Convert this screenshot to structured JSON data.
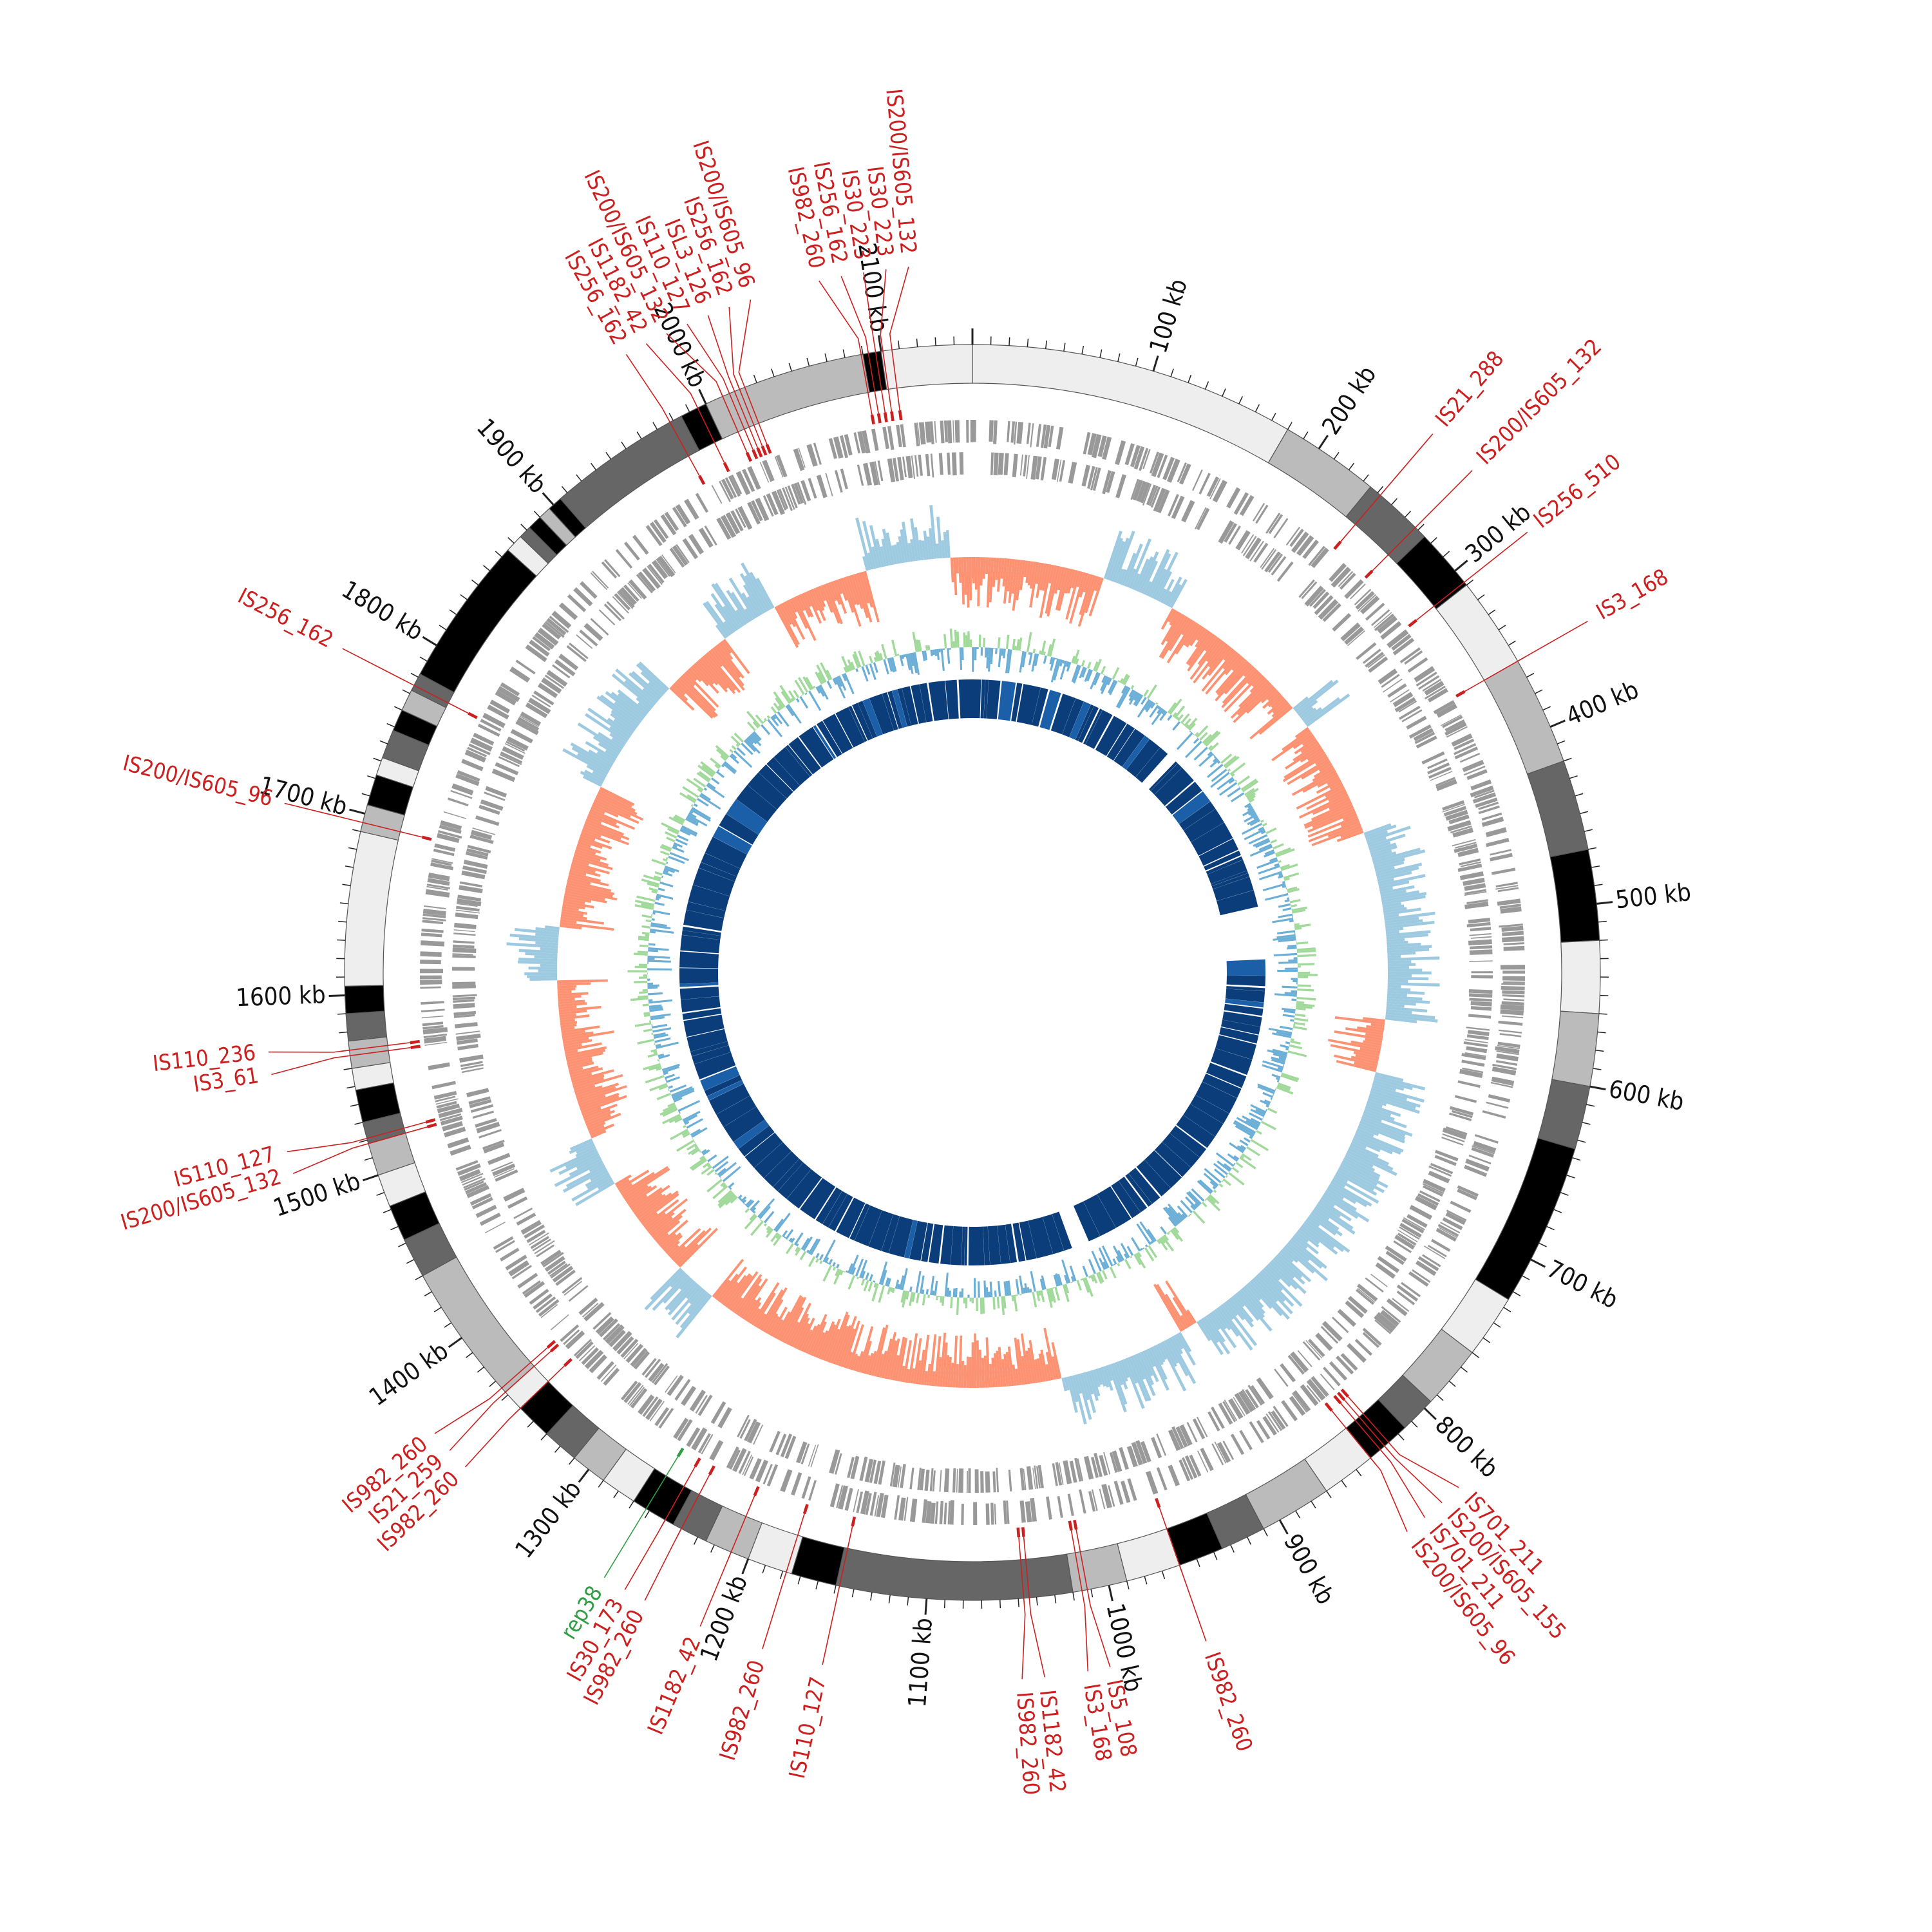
{
  "genome_map": {
    "genome_size_kb": 2150,
    "colors": {
      "is_element": "#cc1f1f",
      "rep_element": "#2f9e44",
      "gc_skew_positive": "#9ecae1",
      "gc_skew_negative": "#fc9272",
      "gc_content_fill": "#a1d99b",
      "gc_content_line": "#6baed6",
      "blast_ring": "#0a3d7a",
      "gene_ring": "#999999"
    },
    "scale_ticks": [
      {
        "kb": 100,
        "label": "100 kb"
      },
      {
        "kb": 200,
        "label": "200 kb"
      },
      {
        "kb": 300,
        "label": "300 kb"
      },
      {
        "kb": 400,
        "label": "400 kb"
      },
      {
        "kb": 500,
        "label": "500 kb"
      },
      {
        "kb": 600,
        "label": "600 kb"
      },
      {
        "kb": 700,
        "label": "700 kb"
      },
      {
        "kb": 800,
        "label": "800 kb"
      },
      {
        "kb": 900,
        "label": "900 kb"
      },
      {
        "kb": 1000,
        "label": "1000 kb"
      },
      {
        "kb": 1100,
        "label": "1100 kb"
      },
      {
        "kb": 1200,
        "label": "1200 kb"
      },
      {
        "kb": 1300,
        "label": "1300 kb"
      },
      {
        "kb": 1400,
        "label": "1400 kb"
      },
      {
        "kb": 1500,
        "label": "1500 kb"
      },
      {
        "kb": 1600,
        "label": "1600 kb"
      },
      {
        "kb": 1700,
        "label": "1700 kb"
      },
      {
        "kb": 1800,
        "label": "1800 kb"
      },
      {
        "kb": 1900,
        "label": "1900 kb"
      },
      {
        "kb": 2000,
        "label": "2000 kb"
      },
      {
        "kb": 2100,
        "label": "2100 kb"
      }
    ],
    "contigs": [
      {
        "start": 0,
        "end": 180,
        "shade": "#eeeeee"
      },
      {
        "start": 180,
        "end": 235,
        "shade": "#bbbbbb"
      },
      {
        "start": 235,
        "end": 275,
        "shade": "#666666"
      },
      {
        "start": 275,
        "end": 310,
        "shade": "#000000"
      },
      {
        "start": 310,
        "end": 360,
        "shade": "#eeeeee"
      },
      {
        "start": 360,
        "end": 420,
        "shade": "#bbbbbb"
      },
      {
        "start": 420,
        "end": 470,
        "shade": "#666666"
      },
      {
        "start": 470,
        "end": 520,
        "shade": "#000000"
      },
      {
        "start": 520,
        "end": 560,
        "shade": "#eeeeee"
      },
      {
        "start": 560,
        "end": 600,
        "shade": "#bbbbbb"
      },
      {
        "start": 600,
        "end": 635,
        "shade": "#666666"
      },
      {
        "start": 635,
        "end": 725,
        "shade": "#000000"
      },
      {
        "start": 725,
        "end": 760,
        "shade": "#eeeeee"
      },
      {
        "start": 760,
        "end": 795,
        "shade": "#bbbbbb"
      },
      {
        "start": 795,
        "end": 815,
        "shade": "#666666"
      },
      {
        "start": 815,
        "end": 840,
        "shade": "#000000"
      },
      {
        "start": 840,
        "end": 870,
        "shade": "#eeeeee"
      },
      {
        "start": 870,
        "end": 910,
        "shade": "#bbbbbb"
      },
      {
        "start": 910,
        "end": 935,
        "shade": "#666666"
      },
      {
        "start": 935,
        "end": 960,
        "shade": "#000000"
      },
      {
        "start": 960,
        "end": 990,
        "shade": "#eeeeee"
      },
      {
        "start": 990,
        "end": 1020,
        "shade": "#bbbbbb"
      },
      {
        "start": 1020,
        "end": 1150,
        "shade": "#666666"
      },
      {
        "start": 1150,
        "end": 1175,
        "shade": "#000000"
      },
      {
        "start": 1175,
        "end": 1200,
        "shade": "#eeeeee"
      },
      {
        "start": 1200,
        "end": 1225,
        "shade": "#bbbbbb"
      },
      {
        "start": 1225,
        "end": 1245,
        "shade": "#666666"
      },
      {
        "start": 1245,
        "end": 1270,
        "shade": "#000000"
      },
      {
        "start": 1270,
        "end": 1290,
        "shade": "#eeeeee"
      },
      {
        "start": 1290,
        "end": 1310,
        "shade": "#bbbbbb"
      },
      {
        "start": 1310,
        "end": 1330,
        "shade": "#666666"
      },
      {
        "start": 1330,
        "end": 1350,
        "shade": "#000000"
      },
      {
        "start": 1350,
        "end": 1362,
        "shade": "#eeeeee"
      },
      {
        "start": 1362,
        "end": 1440,
        "shade": "#bbbbbb"
      },
      {
        "start": 1440,
        "end": 1462,
        "shade": "#666666"
      },
      {
        "start": 1462,
        "end": 1482,
        "shade": "#000000"
      },
      {
        "start": 1482,
        "end": 1500,
        "shade": "#eeeeee"
      },
      {
        "start": 1500,
        "end": 1518,
        "shade": "#bbbbbb"
      },
      {
        "start": 1518,
        "end": 1530,
        "shade": "#666666"
      },
      {
        "start": 1530,
        "end": 1548,
        "shade": "#000000"
      },
      {
        "start": 1548,
        "end": 1560,
        "shade": "#eeeeee"
      },
      {
        "start": 1560,
        "end": 1575,
        "shade": "#bbbbbb"
      },
      {
        "start": 1575,
        "end": 1590,
        "shade": "#666666"
      },
      {
        "start": 1590,
        "end": 1605,
        "shade": "#000000"
      },
      {
        "start": 1605,
        "end": 1690,
        "shade": "#eeeeee"
      },
      {
        "start": 1690,
        "end": 1705,
        "shade": "#bbbbbb"
      },
      {
        "start": 1705,
        "end": 1722,
        "shade": "#000000"
      },
      {
        "start": 1722,
        "end": 1732,
        "shade": "#eeeeee"
      },
      {
        "start": 1732,
        "end": 1748,
        "shade": "#666666"
      },
      {
        "start": 1748,
        "end": 1760,
        "shade": "#000000"
      },
      {
        "start": 1760,
        "end": 1772,
        "shade": "#bbbbbb"
      },
      {
        "start": 1772,
        "end": 1782,
        "shade": "#666666"
      },
      {
        "start": 1782,
        "end": 1865,
        "shade": "#000000"
      },
      {
        "start": 1865,
        "end": 1875,
        "shade": "#eeeeee"
      },
      {
        "start": 1875,
        "end": 1882,
        "shade": "#666666"
      },
      {
        "start": 1882,
        "end": 1890,
        "shade": "#000000"
      },
      {
        "start": 1890,
        "end": 1897,
        "shade": "#bbbbbb"
      },
      {
        "start": 1897,
        "end": 1905,
        "shade": "#000000"
      },
      {
        "start": 1905,
        "end": 1985,
        "shade": "#666666"
      },
      {
        "start": 1985,
        "end": 2000,
        "shade": "#000000"
      },
      {
        "start": 2000,
        "end": 2010,
        "shade": "#bbbbbb"
      },
      {
        "start": 2010,
        "end": 2090,
        "shade": "#bbbbbb"
      },
      {
        "start": 2090,
        "end": 2100,
        "shade": "#000000"
      },
      {
        "start": 2100,
        "end": 2150,
        "shade": "#eeeeee"
      }
    ],
    "is_elements": [
      {
        "pos": 2106,
        "label": "IS200/IS605_132",
        "type": "IS"
      },
      {
        "pos": 2101,
        "label": "IS30_223",
        "type": "IS"
      },
      {
        "pos": 2097,
        "label": "IS30_223",
        "type": "IS"
      },
      {
        "pos": 2093,
        "label": "IS256_162",
        "type": "IS"
      },
      {
        "pos": 2089,
        "label": "IS982_260",
        "type": "IS"
      },
      {
        "pos": 2023,
        "label": "IS200/IS605_96",
        "type": "IS"
      },
      {
        "pos": 2020,
        "label": "IS256_162",
        "type": "IS"
      },
      {
        "pos": 2017,
        "label": "ISL3_126",
        "type": "IS"
      },
      {
        "pos": 2014,
        "label": "IS110_127",
        "type": "IS"
      },
      {
        "pos": 2010,
        "label": "IS200/IS605_132",
        "type": "IS"
      },
      {
        "pos": 1995,
        "label": "IS1182_42",
        "type": "IS"
      },
      {
        "pos": 1978,
        "label": "IS256_162",
        "type": "IS"
      },
      {
        "pos": 242,
        "label": "IS21_288",
        "type": "IS"
      },
      {
        "pos": 268,
        "label": "IS200/IS605_132",
        "type": "IS"
      },
      {
        "pos": 308,
        "label": "IS256_510",
        "type": "IS"
      },
      {
        "pos": 360,
        "label": "IS3_168",
        "type": "IS"
      },
      {
        "pos": 827,
        "label": "IS701_211",
        "type": "IS"
      },
      {
        "pos": 830,
        "label": "IS200/IS605_155",
        "type": "IS"
      },
      {
        "pos": 833,
        "label": "IS701_211",
        "type": "IS"
      },
      {
        "pos": 840,
        "label": "IS200/IS605_96",
        "type": "IS"
      },
      {
        "pos": 960,
        "label": "IS982_260",
        "type": "IS"
      },
      {
        "pos": 1012,
        "label": "IS5_108",
        "type": "IS"
      },
      {
        "pos": 1015,
        "label": "IS3_168",
        "type": "IS"
      },
      {
        "pos": 1044,
        "label": "IS1182_42",
        "type": "IS"
      },
      {
        "pos": 1047,
        "label": "IS982_260",
        "type": "IS"
      },
      {
        "pos": 1148,
        "label": "IS110_127",
        "type": "IS"
      },
      {
        "pos": 1178,
        "label": "IS982_260",
        "type": "IS"
      },
      {
        "pos": 1210,
        "label": "IS1182_42",
        "type": "IS"
      },
      {
        "pos": 1240,
        "label": "IS982_260",
        "type": "IS"
      },
      {
        "pos": 1250,
        "label": "IS30_173",
        "type": "IS"
      },
      {
        "pos": 1262,
        "label": "rep38",
        "type": "rep"
      },
      {
        "pos": 1350,
        "label": "IS982_260",
        "type": "IS"
      },
      {
        "pos": 1362,
        "label": "IS21_259",
        "type": "IS"
      },
      {
        "pos": 1365,
        "label": "IS982_260",
        "type": "IS"
      },
      {
        "pos": 1518,
        "label": "IS200/IS605_132",
        "type": "IS"
      },
      {
        "pos": 1521,
        "label": "IS110_127",
        "type": "IS"
      },
      {
        "pos": 1567,
        "label": "IS3_61",
        "type": "IS"
      },
      {
        "pos": 1570,
        "label": "IS110_236",
        "type": "IS"
      },
      {
        "pos": 1695,
        "label": "IS200/IS605_96",
        "type": "IS"
      },
      {
        "pos": 1775,
        "label": "IS256_162",
        "type": "IS"
      }
    ]
  }
}
